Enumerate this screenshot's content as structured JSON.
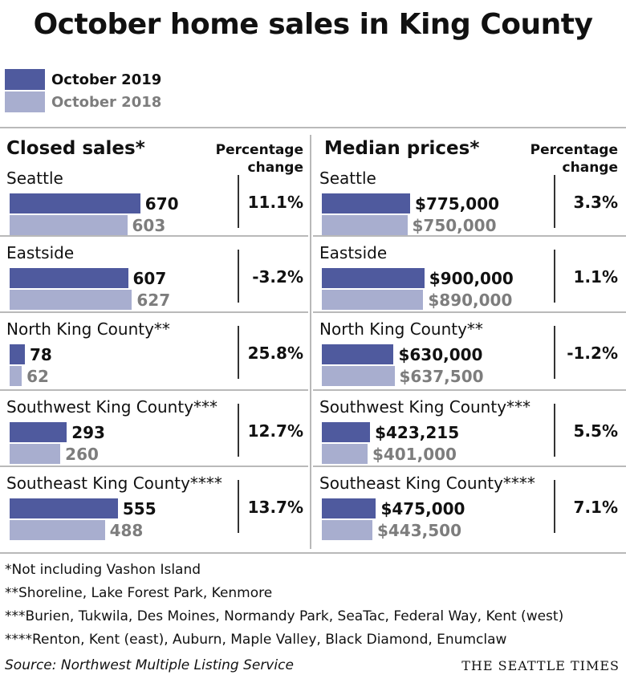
{
  "title": "October home sales in King County",
  "legend": {
    "current": "October 2019",
    "previous": "October 2018"
  },
  "colors": {
    "current": "#4f5a9e",
    "previous": "#a8aecf",
    "previous_text": "#7d7d7d",
    "text": "#111111"
  },
  "panels": {
    "sales": {
      "title": "Closed sales*",
      "change_label_1": "Percentage",
      "change_label_2": "change"
    },
    "prices": {
      "title": "Median prices*",
      "change_label_1": "Percentage",
      "change_label_2": "change"
    }
  },
  "chart_data": [
    {
      "type": "bar",
      "title": "Closed sales*",
      "categories": [
        "Seattle",
        "Eastside",
        "North King County**",
        "Southwest King County***",
        "Southeast King County****"
      ],
      "series": [
        {
          "name": "October 2019",
          "values": [
            670,
            607,
            78,
            293,
            555
          ],
          "labels": [
            "670",
            "607",
            "78",
            "293",
            "555"
          ]
        },
        {
          "name": "October 2018",
          "values": [
            603,
            627,
            62,
            260,
            488
          ],
          "labels": [
            "603",
            "627",
            "62",
            "260",
            "488"
          ]
        }
      ],
      "percentage_change": [
        "11.1%",
        "-3.2%",
        "25.8%",
        "12.7%",
        "13.7%"
      ]
    },
    {
      "type": "bar",
      "title": "Median prices*",
      "categories": [
        "Seattle",
        "Eastside",
        "North King County**",
        "Southwest King County***",
        "Southeast King County****"
      ],
      "series": [
        {
          "name": "October 2019",
          "values": [
            775000,
            900000,
            630000,
            423215,
            475000
          ],
          "labels": [
            "$775,000",
            "$900,000",
            "$630,000",
            "$423,215",
            "$475,000"
          ]
        },
        {
          "name": "October 2018",
          "values": [
            750000,
            890000,
            637500,
            401000,
            443500
          ],
          "labels": [
            "$750,000",
            "$890,000",
            "$637,500",
            "$401,000",
            "$443,500"
          ]
        }
      ],
      "percentage_change": [
        "3.3%",
        "1.1%",
        "-1.2%",
        "5.5%",
        "7.1%"
      ]
    }
  ],
  "footnotes": [
    "*Not including Vashon Island",
    "**Shoreline, Lake Forest Park, Kenmore",
    "***Burien, Tukwila, Des Moines, Normandy Park, SeaTac, Federal Way, Kent (west)",
    "****Renton, Kent (east), Auburn, Maple Valley, Black Diamond, Enumclaw"
  ],
  "source": "Source: Northwest Multiple Listing Service",
  "publisher": "THE SEATTLE TIMES"
}
